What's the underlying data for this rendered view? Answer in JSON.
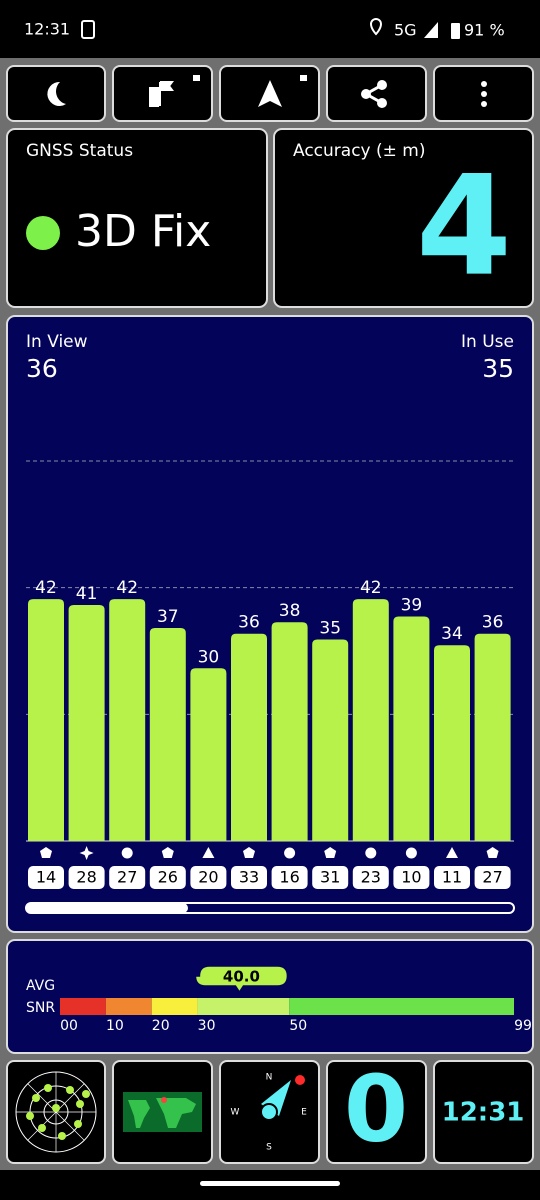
{
  "status_bar": {
    "time": "12:31",
    "network": "5G",
    "battery": "91 %"
  },
  "gnss_status": {
    "title": "GNSS Status",
    "value": "3D Fix"
  },
  "accuracy": {
    "title": "Accuracy (± m)",
    "value": "4"
  },
  "satellites": {
    "in_view_label": "In View",
    "in_view": 36,
    "in_use_label": "In Use",
    "in_use": 35,
    "ylim": [
      0,
      66
    ],
    "grid": [
      22,
      44,
      66
    ],
    "bar_color": "#b6f24a",
    "snr": [
      42,
      41,
      42,
      37,
      30,
      36,
      38,
      35,
      42,
      39,
      34,
      36
    ],
    "ids": [
      14,
      28,
      27,
      26,
      20,
      33,
      16,
      31,
      23,
      10,
      11,
      27
    ]
  },
  "snr_meter": {
    "label_top": "AVG",
    "label_bottom": "SNR",
    "value": 40,
    "value_label": "40.0",
    "xlim": [
      0,
      99
    ],
    "ticks": [
      {
        "value": 0,
        "label": "00"
      },
      10,
      20,
      30,
      50,
      99
    ],
    "colors": [
      "#e53127",
      "#f0862f",
      "#f7ef3c",
      "#c6f26a",
      "#6ce24a"
    ]
  },
  "bottom": {
    "compass": {
      "n": "N",
      "e": "E",
      "s": "S",
      "w": "W"
    },
    "speed": "0",
    "clock": "12:31"
  }
}
